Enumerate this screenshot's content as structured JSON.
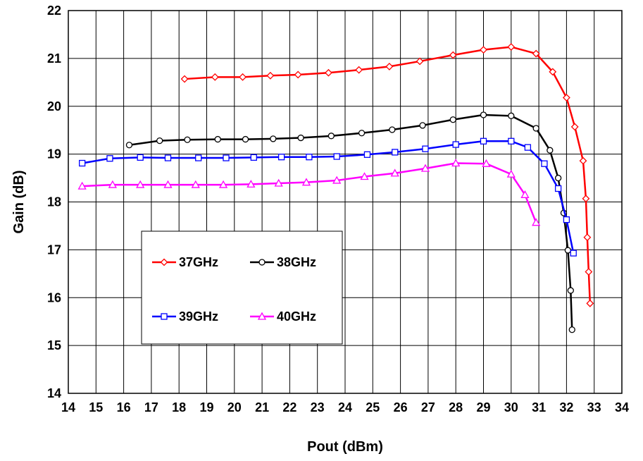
{
  "chart_data": {
    "type": "line",
    "xlabel": "Pout (dBm)",
    "ylabel": "Gain (dB)",
    "xlim": [
      14,
      34
    ],
    "ylim": [
      14,
      22
    ],
    "xticks": [
      "14",
      "15",
      "16",
      "17",
      "18",
      "19",
      "20",
      "21",
      "22",
      "23",
      "24",
      "25",
      "26",
      "27",
      "28",
      "29",
      "30",
      "31",
      "32",
      "33",
      "34"
    ],
    "yticks": [
      "14",
      "15",
      "16",
      "17",
      "18",
      "19",
      "20",
      "21",
      "22"
    ],
    "grid": true,
    "legend_placement": "center-left",
    "series": [
      {
        "name": "37GHz",
        "color": "#ff0000",
        "marker": "diamond",
        "x": [
          18.2,
          19.3,
          20.3,
          21.3,
          22.3,
          23.4,
          24.5,
          25.6,
          26.7,
          27.9,
          29.0,
          30.0,
          30.9,
          31.5,
          32.0,
          32.3,
          32.6,
          32.7,
          32.75,
          32.8,
          32.85
        ],
        "y": [
          20.57,
          20.61,
          20.61,
          20.64,
          20.66,
          20.7,
          20.76,
          20.83,
          20.94,
          21.07,
          21.18,
          21.24,
          21.1,
          20.72,
          20.18,
          19.57,
          18.86,
          18.07,
          17.26,
          16.54,
          15.88
        ]
      },
      {
        "name": "38GHz",
        "color": "#000000",
        "marker": "circle",
        "x": [
          16.2,
          17.3,
          18.3,
          19.4,
          20.4,
          21.4,
          22.4,
          23.5,
          24.6,
          25.7,
          26.8,
          27.9,
          29.0,
          30.0,
          30.9,
          31.4,
          31.7,
          31.9,
          32.05,
          32.15,
          32.2
        ],
        "y": [
          19.19,
          19.28,
          19.3,
          19.31,
          19.31,
          19.32,
          19.34,
          19.38,
          19.44,
          19.51,
          19.6,
          19.72,
          19.82,
          19.8,
          19.54,
          19.08,
          18.5,
          17.77,
          16.99,
          16.15,
          15.33
        ]
      },
      {
        "name": "39GHz",
        "color": "#0000ff",
        "marker": "square",
        "x": [
          14.5,
          15.5,
          16.6,
          17.6,
          18.7,
          19.7,
          20.7,
          21.7,
          22.7,
          23.7,
          24.8,
          25.8,
          26.9,
          28.0,
          29.0,
          30.0,
          30.6,
          31.2,
          31.7,
          32.0,
          32.25
        ],
        "y": [
          18.81,
          18.91,
          18.93,
          18.92,
          18.92,
          18.92,
          18.93,
          18.94,
          18.94,
          18.95,
          18.99,
          19.04,
          19.11,
          19.2,
          19.27,
          19.27,
          19.14,
          18.8,
          18.28,
          17.63,
          16.93
        ]
      },
      {
        "name": "40GHz",
        "color": "#ff00ff",
        "marker": "triangle",
        "x": [
          14.5,
          15.6,
          16.6,
          17.6,
          18.6,
          19.6,
          20.6,
          21.6,
          22.6,
          23.7,
          24.7,
          25.8,
          26.9,
          28.0,
          29.1,
          30.0,
          30.5,
          30.9
        ],
        "y": [
          18.33,
          18.36,
          18.36,
          18.36,
          18.36,
          18.36,
          18.37,
          18.39,
          18.41,
          18.45,
          18.53,
          18.6,
          18.7,
          18.81,
          18.8,
          18.58,
          18.15,
          17.57
        ]
      }
    ]
  }
}
